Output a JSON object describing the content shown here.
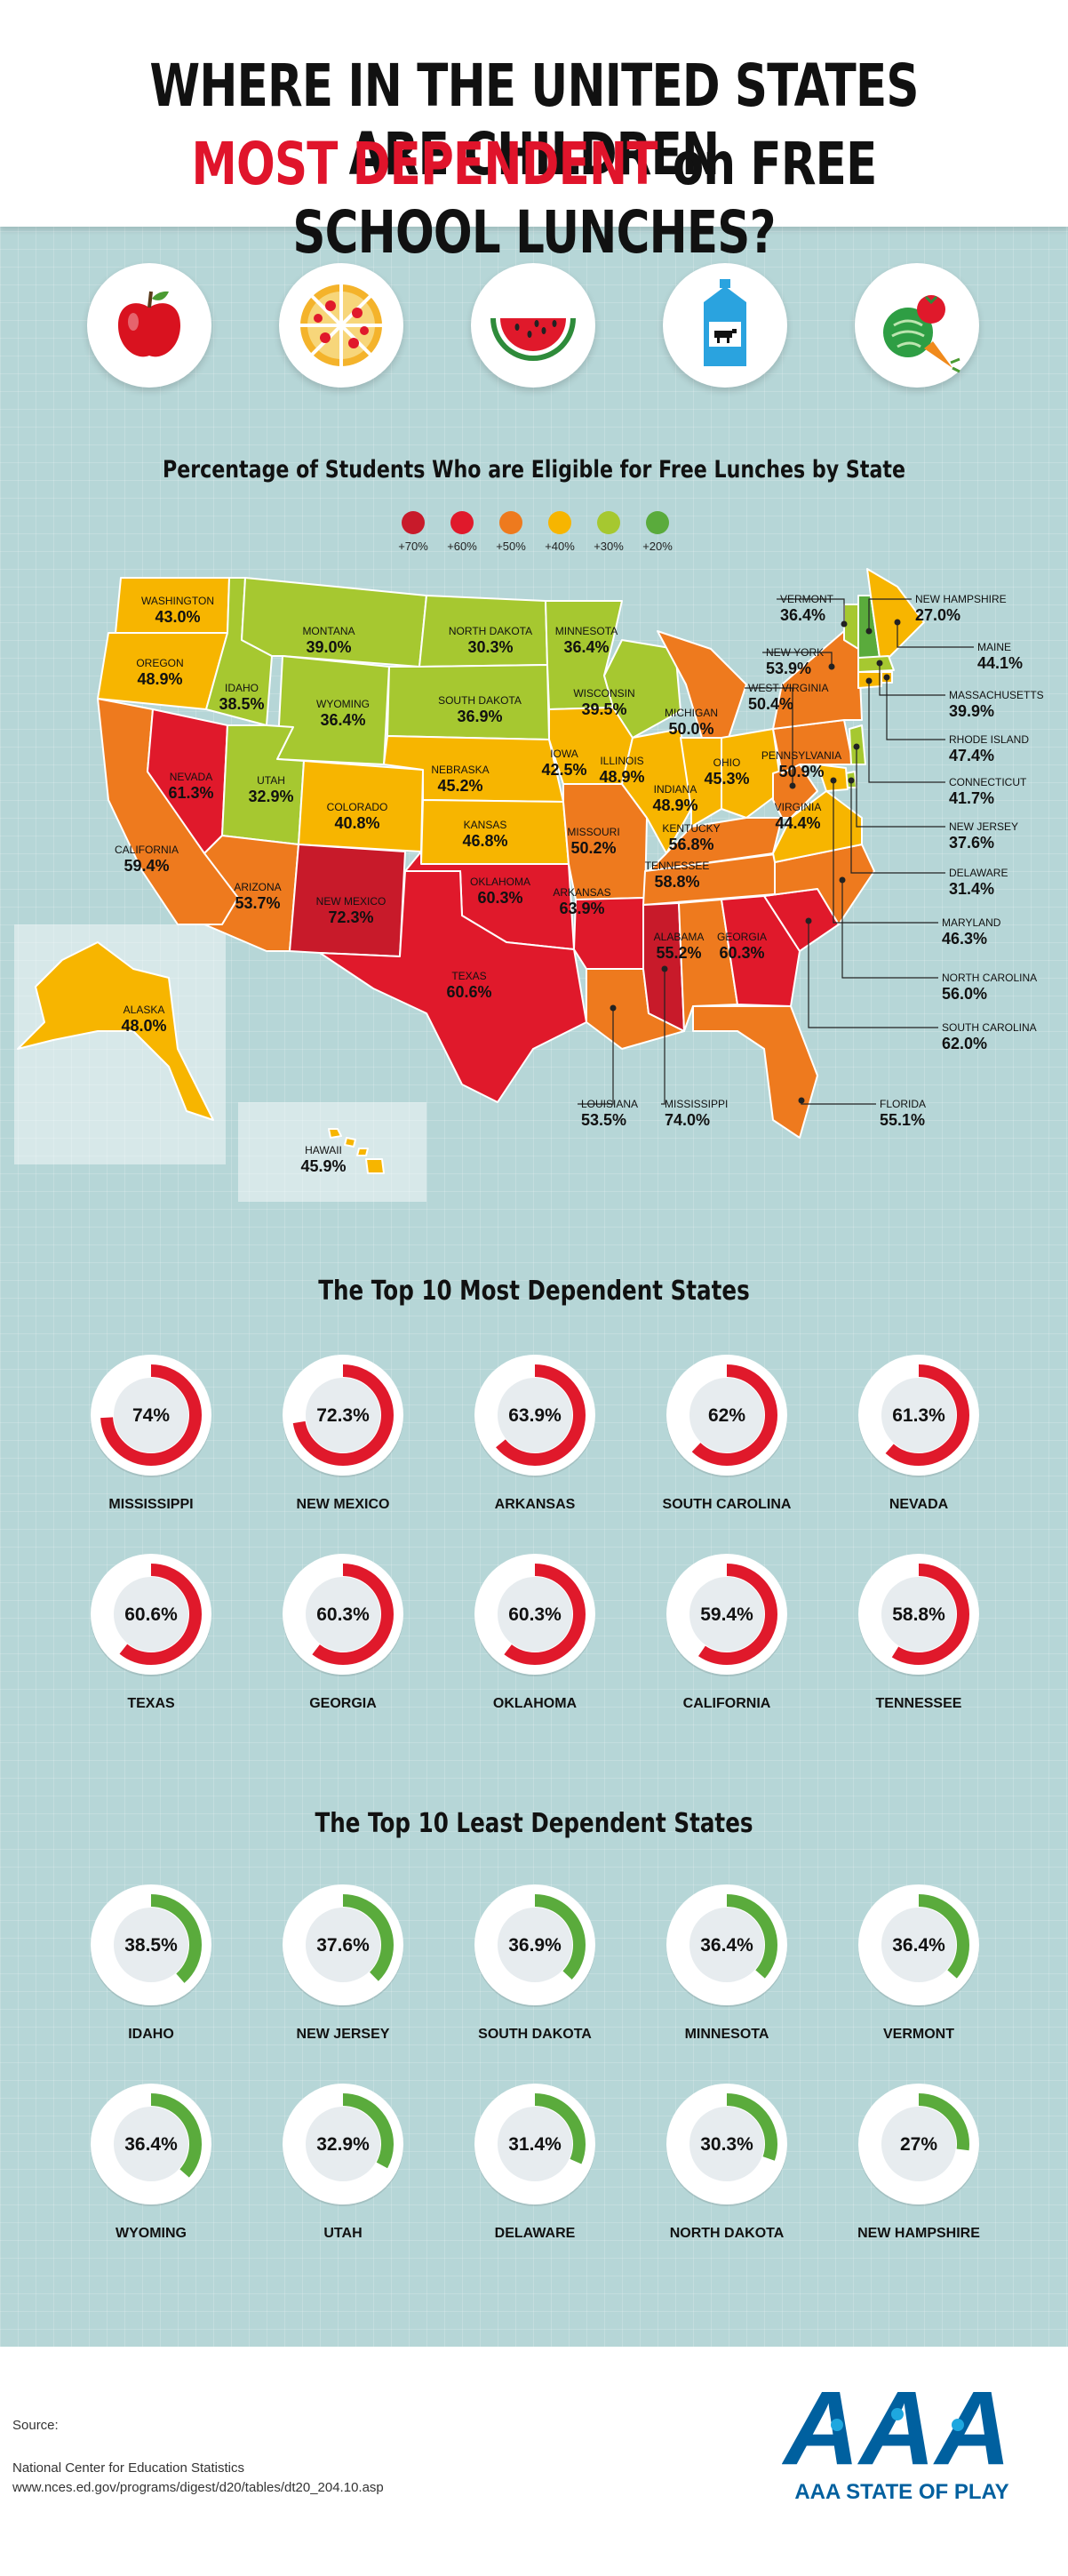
{
  "header": {
    "line1": "WHERE IN THE UNITED STATES ARE CHILDREN",
    "line2_red": "MOST DEPENDENT",
    "line2_rest": " on FREE SCHOOL LUNCHES?"
  },
  "icons": [
    "apple-icon",
    "pizza-icon",
    "watermelon-icon",
    "milk-carton-icon",
    "vegetables-icon"
  ],
  "colors": {
    "level_70": "#c81a2a",
    "level_60": "#e0192b",
    "level_50": "#ee7a1e",
    "level_40": "#f7b500",
    "level_30": "#a6c830",
    "level_20": "#5aab3c",
    "most_ring": "#e0192b",
    "least_ring": "#5aab3c",
    "brand": "#00609f"
  },
  "map_section": {
    "title": "Percentage of Students Who are Eligible for Free Lunches by State",
    "legend": [
      "+70%",
      "+60%",
      "+50%",
      "+40%",
      "+30%",
      "+20%"
    ]
  },
  "chart_data": [
    {
      "type": "choropleth-map",
      "title": "Percentage of Students Who are Eligible for Free Lunches by State",
      "unit": "%",
      "states": [
        {
          "name": "WASHINGTON",
          "value": 43.0,
          "label": "43.0%"
        },
        {
          "name": "OREGON",
          "value": 48.9,
          "label": "48.9%"
        },
        {
          "name": "CALIFORNIA",
          "value": 59.4,
          "label": "59.4%"
        },
        {
          "name": "NEVADA",
          "value": 61.3,
          "label": "61.3%"
        },
        {
          "name": "IDAHO",
          "value": 38.5,
          "label": "38.5%"
        },
        {
          "name": "MONTANA",
          "value": 39.0,
          "label": "39.0%"
        },
        {
          "name": "WYOMING",
          "value": 36.4,
          "label": "36.4%"
        },
        {
          "name": "UTAH",
          "value": 32.9,
          "label": "32.9%"
        },
        {
          "name": "COLORADO",
          "value": 40.8,
          "label": "40.8%"
        },
        {
          "name": "ARIZONA",
          "value": 53.7,
          "label": "53.7%"
        },
        {
          "name": "NEW MEXICO",
          "value": 72.3,
          "label": "72.3%"
        },
        {
          "name": "NORTH DAKOTA",
          "value": 30.3,
          "label": "30.3%"
        },
        {
          "name": "SOUTH DAKOTA",
          "value": 36.9,
          "label": "36.9%"
        },
        {
          "name": "NEBRASKA",
          "value": 45.2,
          "label": "45.2%"
        },
        {
          "name": "KANSAS",
          "value": 46.8,
          "label": "46.8%"
        },
        {
          "name": "OKLAHOMA",
          "value": 60.3,
          "label": "60.3%"
        },
        {
          "name": "TEXAS",
          "value": 60.6,
          "label": "60.6%"
        },
        {
          "name": "MINNESOTA",
          "value": 36.4,
          "label": "36.4%"
        },
        {
          "name": "IOWA",
          "value": 42.5,
          "label": "42.5%"
        },
        {
          "name": "MISSOURI",
          "value": 50.2,
          "label": "50.2%"
        },
        {
          "name": "ARKANSAS",
          "value": 63.9,
          "label": "63.9%"
        },
        {
          "name": "LOUISIANA",
          "value": 53.5,
          "label": "53.5%"
        },
        {
          "name": "WISCONSIN",
          "value": 39.5,
          "label": "39.5%"
        },
        {
          "name": "ILLINOIS",
          "value": 48.9,
          "label": "48.9%"
        },
        {
          "name": "MICHIGAN",
          "value": 50.0,
          "label": "50.0%"
        },
        {
          "name": "INDIANA",
          "value": 48.9,
          "label": "48.9%"
        },
        {
          "name": "OHIO",
          "value": 45.3,
          "label": "45.3%"
        },
        {
          "name": "KENTUCKY",
          "value": 56.8,
          "label": "56.8%"
        },
        {
          "name": "TENNESSEE",
          "value": 58.8,
          "label": "58.8%"
        },
        {
          "name": "MISSISSIPPI",
          "value": 74.0,
          "label": "74.0%"
        },
        {
          "name": "ALABAMA",
          "value": 55.2,
          "label": "55.2%"
        },
        {
          "name": "GEORGIA",
          "value": 60.3,
          "label": "60.3%"
        },
        {
          "name": "FLORIDA",
          "value": 55.1,
          "label": "55.1%"
        },
        {
          "name": "SOUTH  CAROLINA",
          "value": 62.0,
          "label": "62.0%"
        },
        {
          "name": "NORTH CAROLINA",
          "value": 56.0,
          "label": "56.0%"
        },
        {
          "name": "VIRGINIA",
          "value": 44.4,
          "label": "44.4%"
        },
        {
          "name": "WEST VIRGINIA",
          "value": 50.4,
          "label": "50.4%"
        },
        {
          "name": "PENNSYLVANIA",
          "value": 50.9,
          "label": "50.9%"
        },
        {
          "name": "NEW YORK",
          "value": 53.9,
          "label": "53.9%"
        },
        {
          "name": "VERMONT",
          "value": 36.4,
          "label": "36.4%"
        },
        {
          "name": "NEW HAMPSHIRE",
          "value": 27.0,
          "label": "27.0%"
        },
        {
          "name": "MAINE",
          "value": 44.1,
          "label": "44.1%"
        },
        {
          "name": "MASSACHUSETTS",
          "value": 39.9,
          "label": "39.9%"
        },
        {
          "name": "RHODE ISLAND",
          "value": 47.4,
          "label": "47.4%"
        },
        {
          "name": "CONNECTICUT",
          "value": 41.7,
          "label": "41.7%"
        },
        {
          "name": "NEW JERSEY",
          "value": 37.6,
          "label": "37.6%"
        },
        {
          "name": "DELAWARE",
          "value": 31.4,
          "label": "31.4%"
        },
        {
          "name": "MARYLAND",
          "value": 46.3,
          "label": "46.3%"
        },
        {
          "name": "ALASKA",
          "value": 48.0,
          "label": "48.0%"
        },
        {
          "name": "HAWAII",
          "value": 45.9,
          "label": "45.9%"
        }
      ]
    },
    {
      "type": "donut",
      "title": "The Top 10 Most Dependent States",
      "unit": "%",
      "items": [
        {
          "name": "MISSISSIPPI",
          "value": 74,
          "label": "74%"
        },
        {
          "name": "NEW MEXICO",
          "value": 72.3,
          "label": "72.3%"
        },
        {
          "name": "ARKANSAS",
          "value": 63.9,
          "label": "63.9%"
        },
        {
          "name": "SOUTH CAROLINA",
          "value": 62,
          "label": "62%"
        },
        {
          "name": "NEVADA",
          "value": 61.3,
          "label": "61.3%"
        },
        {
          "name": "TEXAS",
          "value": 60.6,
          "label": "60.6%"
        },
        {
          "name": "GEORGIA",
          "value": 60.3,
          "label": "60.3%"
        },
        {
          "name": "OKLAHOMA",
          "value": 60.3,
          "label": "60.3%"
        },
        {
          "name": "CALIFORNIA",
          "value": 59.4,
          "label": "59.4%"
        },
        {
          "name": "TENNESSEE",
          "value": 58.8,
          "label": "58.8%"
        }
      ]
    },
    {
      "type": "donut",
      "title": "The Top 10 Least Dependent States",
      "unit": "%",
      "items": [
        {
          "name": "IDAHO",
          "value": 38.5,
          "label": "38.5%"
        },
        {
          "name": "NEW JERSEY",
          "value": 37.6,
          "label": "37.6%"
        },
        {
          "name": "SOUTH DAKOTA",
          "value": 36.9,
          "label": "36.9%"
        },
        {
          "name": "MINNESOTA",
          "value": 36.4,
          "label": "36.4%"
        },
        {
          "name": "VERMONT",
          "value": 36.4,
          "label": "36.4%"
        },
        {
          "name": "WYOMING",
          "value": 36.4,
          "label": "36.4%"
        },
        {
          "name": "UTAH",
          "value": 32.9,
          "label": "32.9%"
        },
        {
          "name": "DELAWARE",
          "value": 31.4,
          "label": "31.4%"
        },
        {
          "name": "NORTH DAKOTA",
          "value": 30.3,
          "label": "30.3%"
        },
        {
          "name": "NEW HAMPSHIRE",
          "value": 27,
          "label": "27%"
        }
      ]
    }
  ],
  "footer": {
    "source_label": "Source:",
    "source_line1": "National Center for Education Statistics",
    "source_line2": "www.nces.ed.gov/programs/digest/d20/tables/dt20_204.10.asp",
    "brand_text": "AAA STATE OF PLAY",
    "brand_logo_text": "AAA"
  }
}
